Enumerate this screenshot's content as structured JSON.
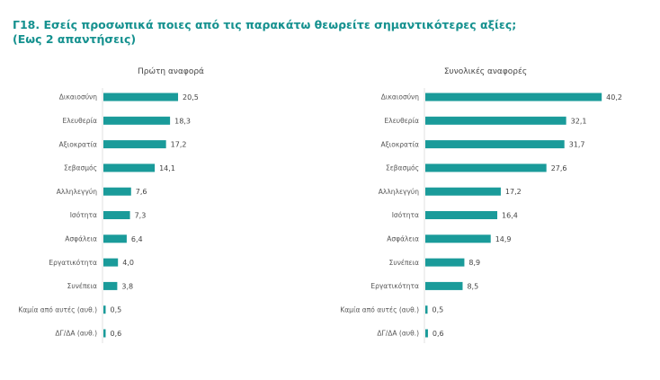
{
  "title_line1": "Γ18. Εσείς προσωπικά ποιες από τις παρακάτω θεωρείτε σημαντικότερες αξίες;",
  "title_line2": "(Εως 2 απαντήσεις)",
  "colors": {
    "bar": "#1a9b9a",
    "title": "#15918f"
  },
  "chart_data": [
    {
      "type": "bar",
      "orientation": "horizontal",
      "title": "Πρώτη αναφορά",
      "categories": [
        "Δικαιοσύνη",
        "Ελευθερία",
        "Αξιοκρατία",
        "Σεβασμός",
        "Αλληλεγγύη",
        "Ισότητα",
        "Ασφάλεια",
        "Εργατικότητα",
        "Συνέπεια",
        "Καμία από αυτές (αυθ.)",
        "ΔΓ/ΔΑ (αυθ.)"
      ],
      "values": [
        20.5,
        18.3,
        17.2,
        14.1,
        7.6,
        7.3,
        6.4,
        4.0,
        3.8,
        0.5,
        0.6
      ],
      "data_labels": [
        "20,5",
        "18,3",
        "17,2",
        "14,1",
        "7,6",
        "7,3",
        "6,4",
        "4,0",
        "3,8",
        "0,5",
        "0,6"
      ]
    },
    {
      "type": "bar",
      "orientation": "horizontal",
      "title": "Συνολικές αναφορές",
      "categories": [
        "Δικαιοσύνη",
        "Ελευθερία",
        "Αξιοκρατία",
        "Σεβασμός",
        "Αλληλεγγύη",
        "Ισότητα",
        "Ασφάλεια",
        "Συνέπεια",
        "Εργατικότητα",
        "Καμία από αυτές (αυθ.)",
        "ΔΓ/ΔΑ (αυθ.)"
      ],
      "values": [
        40.2,
        32.1,
        31.7,
        27.6,
        17.2,
        16.4,
        14.9,
        8.9,
        8.5,
        0.5,
        0.6
      ],
      "data_labels": [
        "40,2",
        "32,1",
        "31,7",
        "27,6",
        "17,2",
        "16,4",
        "14,9",
        "8,9",
        "8,5",
        "0,5",
        "0,6"
      ]
    }
  ]
}
